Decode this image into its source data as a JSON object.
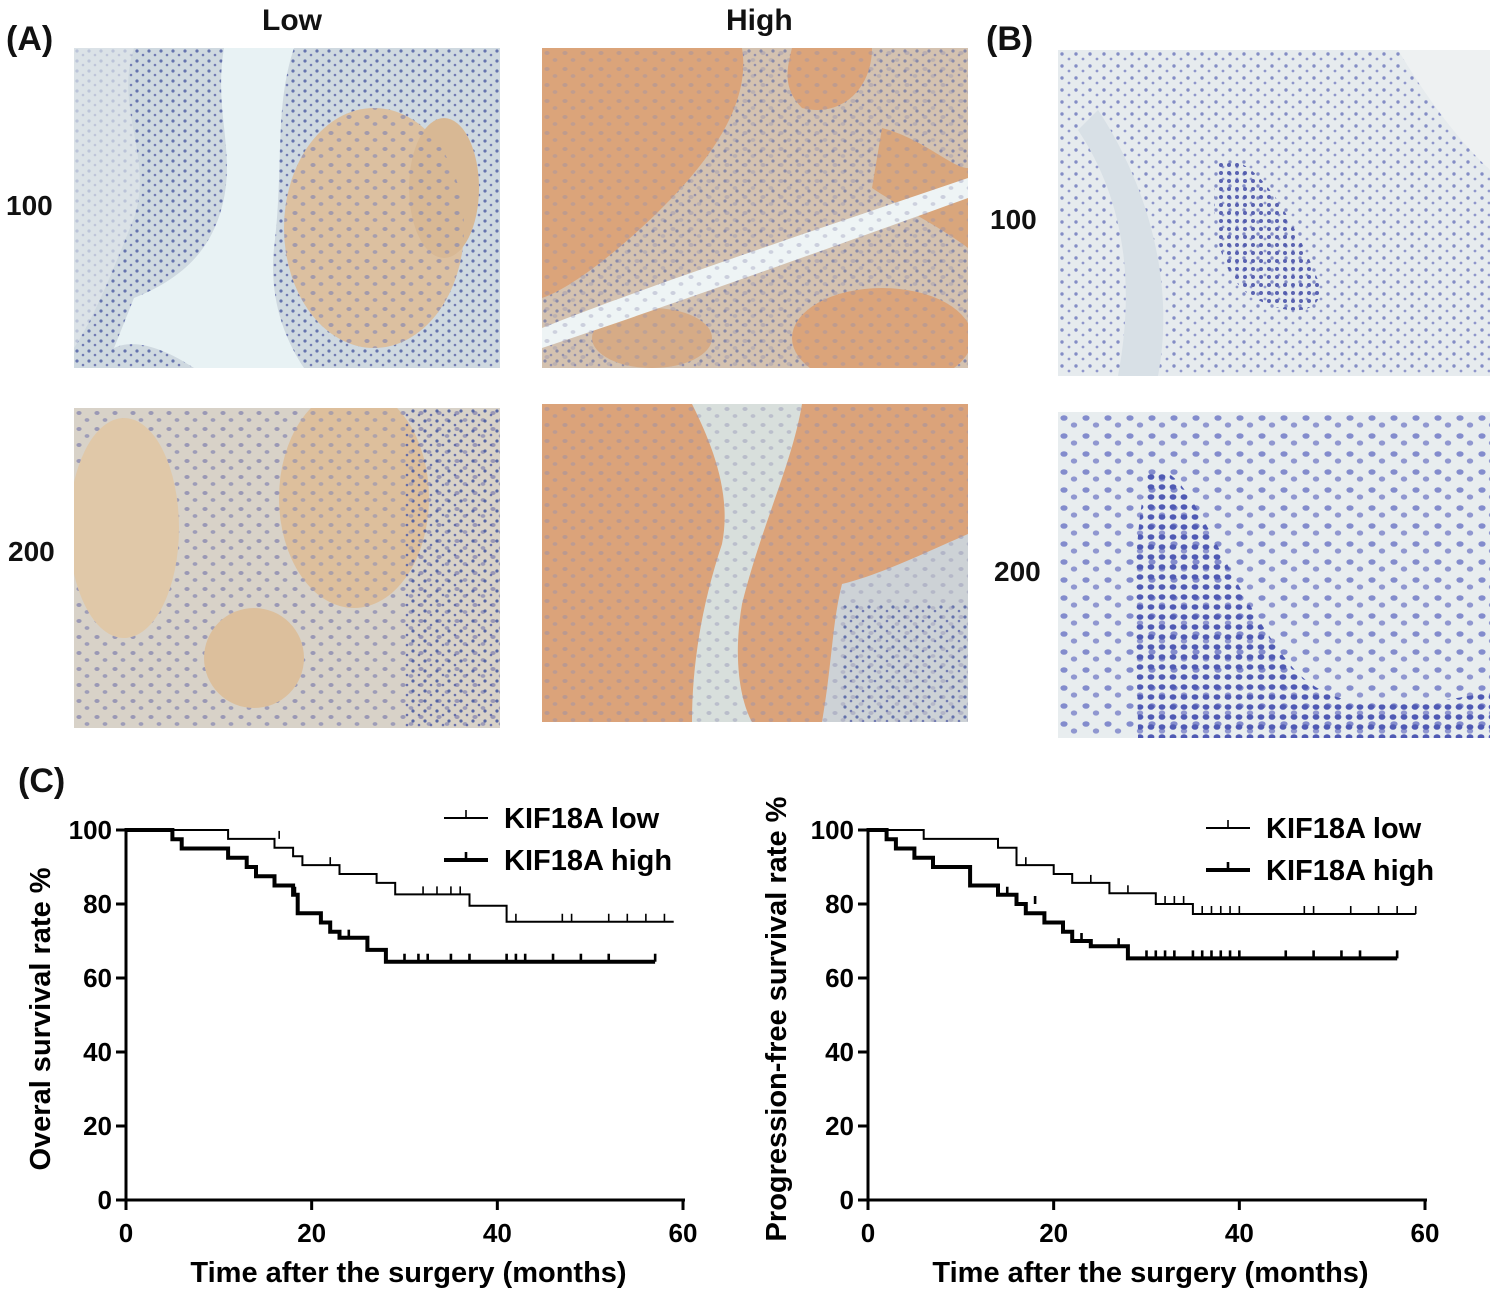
{
  "panels": {
    "a": "(A)",
    "b": "(B)",
    "c": "(C)"
  },
  "columns": {
    "low": "Low",
    "high": "High"
  },
  "magnifications": {
    "m100": "100",
    "m200": "200"
  },
  "stain_colors": {
    "background": "#e8eef0",
    "tumor": "#d9a77a",
    "nuclei": "#4a5aa0",
    "stroma": "#c5d2dc"
  },
  "chart_data": [
    {
      "type": "line",
      "subtype": "kaplan-meier",
      "ylabel": "Overal survival rate %",
      "xlabel": "Time after the surgery (months)",
      "xlim": [
        0,
        60
      ],
      "ylim": [
        0,
        100
      ],
      "xticks": [
        "0",
        "20",
        "40",
        "60"
      ],
      "yticks": [
        "0",
        "20",
        "40",
        "60",
        "80",
        "100"
      ],
      "grid": false,
      "legend": "top-right",
      "series": [
        {
          "name": "KIF18A low",
          "stroke_width": 2,
          "points": [
            [
              0,
              100
            ],
            [
              11,
              100
            ],
            [
              11,
              97.6
            ],
            [
              16,
              97.6
            ],
            [
              16,
              95.2
            ],
            [
              18,
              95.2
            ],
            [
              18,
              92.9
            ],
            [
              19,
              92.9
            ],
            [
              19,
              90.5
            ],
            [
              23,
              90.5
            ],
            [
              23,
              88.1
            ],
            [
              27,
              88.1
            ],
            [
              27,
              85.7
            ],
            [
              29,
              85.7
            ],
            [
              29,
              82.6
            ],
            [
              37,
              82.6
            ],
            [
              37,
              79.5
            ],
            [
              41,
              79.5
            ],
            [
              41,
              75.2
            ],
            [
              59,
              75.2
            ]
          ],
          "censored": [
            [
              16.5,
              97.6
            ],
            [
              22,
              90.5
            ],
            [
              32,
              82.6
            ],
            [
              33.5,
              82.6
            ],
            [
              35,
              82.6
            ],
            [
              36,
              82.6
            ],
            [
              42,
              75.2
            ],
            [
              47,
              75.2
            ],
            [
              48,
              75.2
            ],
            [
              52,
              75.2
            ],
            [
              54,
              75.2
            ],
            [
              56,
              75.2
            ],
            [
              58,
              75.2
            ]
          ]
        },
        {
          "name": "KIF18A high",
          "stroke_width": 4,
          "points": [
            [
              0,
              100
            ],
            [
              5,
              100
            ],
            [
              5,
              97.5
            ],
            [
              6,
              97.5
            ],
            [
              6,
              95
            ],
            [
              11,
              95
            ],
            [
              11,
              92.5
            ],
            [
              13,
              92.5
            ],
            [
              13,
              90
            ],
            [
              14,
              90
            ],
            [
              14,
              87.5
            ],
            [
              16,
              87.5
            ],
            [
              16,
              85
            ],
            [
              18,
              85
            ],
            [
              18,
              82.5
            ],
            [
              18.5,
              82.5
            ],
            [
              18.5,
              77.5
            ],
            [
              21,
              77.5
            ],
            [
              21,
              75
            ],
            [
              22,
              75
            ],
            [
              22,
              72.5
            ],
            [
              23,
              72.5
            ],
            [
              23,
              70.9
            ],
            [
              26,
              70.9
            ],
            [
              26,
              67.6
            ],
            [
              28,
              67.6
            ],
            [
              28,
              64.4
            ],
            [
              57,
              64.4
            ]
          ],
          "censored": [
            [
              18.2,
              82.5
            ],
            [
              24,
              70.9
            ],
            [
              30,
              64.4
            ],
            [
              31.5,
              64.4
            ],
            [
              32.5,
              64.4
            ],
            [
              35,
              64.4
            ],
            [
              37,
              64.4
            ],
            [
              41,
              64.4
            ],
            [
              42,
              64.4
            ],
            [
              43,
              64.4
            ],
            [
              46,
              64.4
            ],
            [
              49,
              64.4
            ],
            [
              52,
              64.4
            ],
            [
              57,
              64.4
            ]
          ]
        }
      ]
    },
    {
      "type": "line",
      "subtype": "kaplan-meier",
      "ylabel": "Progression-free survival rate %",
      "xlabel": "Time after the surgery (months)",
      "xlim": [
        0,
        60
      ],
      "ylim": [
        0,
        100
      ],
      "xticks": [
        "0",
        "20",
        "40",
        "60"
      ],
      "yticks": [
        "0",
        "20",
        "40",
        "60",
        "80",
        "100"
      ],
      "grid": false,
      "legend": "top-right",
      "series": [
        {
          "name": "KIF18A low",
          "stroke_width": 2,
          "points": [
            [
              0,
              100
            ],
            [
              6,
              100
            ],
            [
              6,
              97.6
            ],
            [
              14,
              97.6
            ],
            [
              14,
              95.2
            ],
            [
              16,
              95.2
            ],
            [
              16,
              90.5
            ],
            [
              20,
              90.5
            ],
            [
              20,
              88.1
            ],
            [
              22,
              88.1
            ],
            [
              22,
              85.7
            ],
            [
              26,
              85.7
            ],
            [
              26,
              82.9
            ],
            [
              31,
              82.9
            ],
            [
              31,
              80
            ],
            [
              35,
              80
            ],
            [
              35,
              77.3
            ],
            [
              59,
              77.3
            ]
          ],
          "censored": [
            [
              17,
              90.5
            ],
            [
              24,
              85.7
            ],
            [
              28,
              82.9
            ],
            [
              32,
              80
            ],
            [
              33,
              80
            ],
            [
              34,
              80
            ],
            [
              36,
              77.3
            ],
            [
              37,
              77.3
            ],
            [
              38,
              77.3
            ],
            [
              39,
              77.3
            ],
            [
              40,
              77.3
            ],
            [
              47,
              77.3
            ],
            [
              48,
              77.3
            ],
            [
              52,
              77.3
            ],
            [
              55,
              77.3
            ],
            [
              57,
              77.3
            ],
            [
              59,
              77.3
            ]
          ]
        },
        {
          "name": "KIF18A high",
          "stroke_width": 4,
          "points": [
            [
              0,
              100
            ],
            [
              2,
              100
            ],
            [
              2,
              97.5
            ],
            [
              3,
              97.5
            ],
            [
              3,
              95
            ],
            [
              5,
              95
            ],
            [
              5,
              92.5
            ],
            [
              7,
              92.5
            ],
            [
              7,
              90
            ],
            [
              11,
              90
            ],
            [
              11,
              85
            ],
            [
              14,
              85
            ],
            [
              14,
              82.5
            ],
            [
              16,
              82.5
            ],
            [
              16,
              80
            ],
            [
              17,
              80
            ],
            [
              17,
              77.5
            ],
            [
              19,
              77.5
            ],
            [
              19,
              75
            ],
            [
              21,
              75
            ],
            [
              21,
              72.5
            ],
            [
              22,
              72.5
            ],
            [
              22,
              70
            ],
            [
              24,
              70
            ],
            [
              24,
              68.6
            ],
            [
              28,
              68.6
            ],
            [
              28,
              65.3
            ],
            [
              57,
              65.3
            ]
          ],
          "censored": [
            [
              15,
              82.5
            ],
            [
              18,
              80
            ],
            [
              23,
              70
            ],
            [
              27,
              68.6
            ],
            [
              30,
              65.3
            ],
            [
              31,
              65.3
            ],
            [
              32,
              65.3
            ],
            [
              33,
              65.3
            ],
            [
              35,
              65.3
            ],
            [
              36,
              65.3
            ],
            [
              37,
              65.3
            ],
            [
              38,
              65.3
            ],
            [
              39,
              65.3
            ],
            [
              40,
              65.3
            ],
            [
              45,
              65.3
            ],
            [
              48,
              65.3
            ],
            [
              51,
              65.3
            ],
            [
              53,
              65.3
            ],
            [
              57,
              65.3
            ]
          ]
        }
      ]
    }
  ]
}
